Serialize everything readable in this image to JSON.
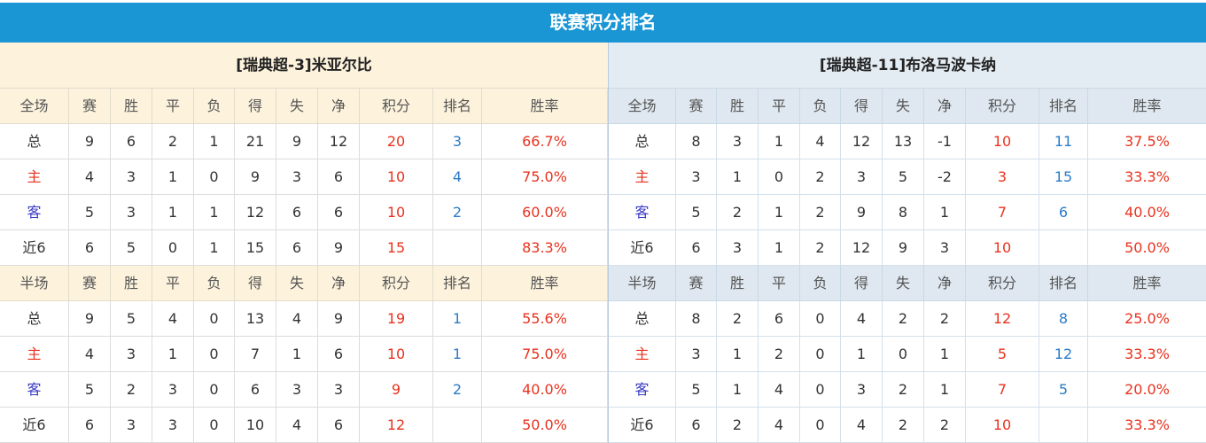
{
  "title": "联赛积分排名",
  "tables": [
    {
      "team": "[瑞典超-3]米亚尔比",
      "sections": [
        {
          "columns": [
            "全场",
            "赛",
            "胜",
            "平",
            "负",
            "得",
            "失",
            "净",
            "积分",
            "排名",
            "胜率"
          ],
          "rows": [
            [
              "总",
              9,
              6,
              2,
              1,
              21,
              9,
              12,
              20,
              3,
              "66.7%"
            ],
            [
              "主",
              4,
              3,
              1,
              0,
              9,
              3,
              6,
              10,
              4,
              "75.0%"
            ],
            [
              "客",
              5,
              3,
              1,
              1,
              12,
              6,
              6,
              10,
              2,
              "60.0%"
            ],
            [
              "近6",
              6,
              5,
              0,
              1,
              15,
              6,
              9,
              15,
              null,
              "83.3%"
            ]
          ]
        },
        {
          "columns": [
            "半场",
            "赛",
            "胜",
            "平",
            "负",
            "得",
            "失",
            "净",
            "积分",
            "排名",
            "胜率"
          ],
          "rows": [
            [
              "总",
              9,
              5,
              4,
              0,
              13,
              4,
              9,
              19,
              1,
              "55.6%"
            ],
            [
              "主",
              4,
              3,
              1,
              0,
              7,
              1,
              6,
              10,
              1,
              "75.0%"
            ],
            [
              "客",
              5,
              2,
              3,
              0,
              6,
              3,
              3,
              9,
              2,
              "40.0%"
            ],
            [
              "近6",
              6,
              3,
              3,
              0,
              10,
              4,
              6,
              12,
              null,
              "50.0%"
            ]
          ]
        }
      ]
    },
    {
      "team": "[瑞典超-11]布洛马波卡纳",
      "sections": [
        {
          "columns": [
            "全场",
            "赛",
            "胜",
            "平",
            "负",
            "得",
            "失",
            "净",
            "积分",
            "排名",
            "胜率"
          ],
          "rows": [
            [
              "总",
              8,
              3,
              1,
              4,
              12,
              13,
              -1,
              10,
              11,
              "37.5%"
            ],
            [
              "主",
              3,
              1,
              0,
              2,
              3,
              5,
              -2,
              3,
              15,
              "33.3%"
            ],
            [
              "客",
              5,
              2,
              1,
              2,
              9,
              8,
              1,
              7,
              6,
              "40.0%"
            ],
            [
              "近6",
              6,
              3,
              1,
              2,
              12,
              9,
              3,
              10,
              null,
              "50.0%"
            ]
          ]
        },
        {
          "columns": [
            "半场",
            "赛",
            "胜",
            "平",
            "负",
            "得",
            "失",
            "净",
            "积分",
            "排名",
            "胜率"
          ],
          "rows": [
            [
              "总",
              8,
              2,
              6,
              0,
              4,
              2,
              2,
              12,
              8,
              "25.0%"
            ],
            [
              "主",
              3,
              1,
              2,
              0,
              1,
              0,
              1,
              5,
              12,
              "33.3%"
            ],
            [
              "客",
              5,
              1,
              4,
              0,
              3,
              2,
              1,
              7,
              5,
              "20.0%"
            ],
            [
              "近6",
              6,
              2,
              4,
              0,
              4,
              2,
              2,
              10,
              null,
              "33.3%"
            ]
          ]
        }
      ]
    }
  ]
}
